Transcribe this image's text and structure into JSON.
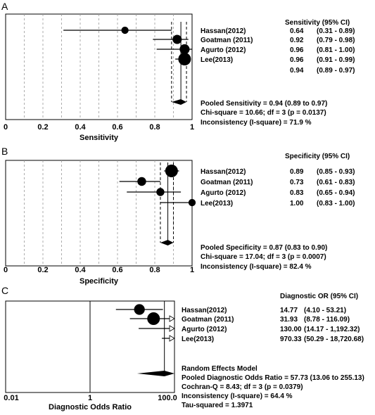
{
  "chart_data": [
    {
      "type": "forest",
      "panel_label": "A",
      "xlabel": "Sensitivity",
      "xlim": [
        0,
        1
      ],
      "xticks": [
        "0",
        "0.2",
        "0.4",
        "0.6",
        "0.8",
        "1"
      ],
      "header": "Sensitivity (95% CI)",
      "studies": [
        {
          "name": "Hassan(2012)",
          "est": 0.64,
          "lo": 0.31,
          "hi": 0.89,
          "value_text": "0.64",
          "ci_text": "(0.31 - 0.89)",
          "weight": 0.3
        },
        {
          "name": "Goatman (2011)",
          "est": 0.92,
          "lo": 0.79,
          "hi": 0.98,
          "value_text": "0.92",
          "ci_text": "(0.79 - 0.98)",
          "weight": 0.55
        },
        {
          "name": "Agurto (2012)",
          "est": 0.96,
          "lo": 0.81,
          "hi": 1.0,
          "value_text": "0.96",
          "ci_text": "(0.81 - 1.00)",
          "weight": 0.65
        },
        {
          "name": "Lee(2013)",
          "est": 0.96,
          "lo": 0.91,
          "hi": 0.99,
          "value_text": "0.96",
          "ci_text": "(0.91 - 0.99)",
          "weight": 1.0
        }
      ],
      "pooled": {
        "est": 0.94,
        "lo": 0.89,
        "hi": 0.97
      },
      "stats": [
        "Pooled Sensitivity = 0.94 (0.89 to 0.97)",
        "Chi-square = 10.66; df = 3 (p = 0.0137)",
        "Inconsistency (I-square) = 71.9 %"
      ]
    },
    {
      "type": "forest",
      "panel_label": "B",
      "xlabel": "Specificity",
      "xlim": [
        0,
        1
      ],
      "xticks": [
        "0",
        "0.2",
        "0.4",
        "0.6",
        "0.8",
        "1"
      ],
      "header": "Specificity (95% CI)",
      "studies": [
        {
          "name": "Hassan(2012)",
          "est": 0.89,
          "lo": 0.85,
          "hi": 0.93,
          "value_text": "0.89",
          "ci_text": "(0.85 - 0.93)",
          "weight": 1.0
        },
        {
          "name": "Goatman (2011)",
          "est": 0.73,
          "lo": 0.61,
          "hi": 0.83,
          "value_text": "0.73",
          "ci_text": "(0.61 - 0.83)",
          "weight": 0.5
        },
        {
          "name": "Agurto (2012)",
          "est": 0.83,
          "lo": 0.65,
          "hi": 0.94,
          "value_text": "0.83",
          "ci_text": "(0.65 - 0.94)",
          "weight": 0.4
        },
        {
          "name": "Lee(2013)",
          "est": 1.0,
          "lo": 0.83,
          "hi": 1.0,
          "value_text": "1.00",
          "ci_text": "(0.83 - 1.00)",
          "weight": 0.3
        }
      ],
      "pooled": {
        "est": 0.87,
        "lo": 0.83,
        "hi": 0.9
      },
      "stats": [
        "Pooled Specificity = 0.87 (0.83 to 0.90)",
        "Chi-square = 17.04; df = 3 (p = 0.0007)",
        "Inconsistency (I-square) = 82.4 %"
      ]
    },
    {
      "type": "forest",
      "panel_label": "C",
      "xlabel": "Diagnostic Odds Ratio",
      "scale": "log",
      "xlim": [
        0.01,
        100
      ],
      "xticks": [
        "0.01",
        "1",
        "100.0"
      ],
      "header": "Diagnostic OR (95% CI)",
      "studies": [
        {
          "name": "Hassan(2012)",
          "est": 14.77,
          "lo": 4.1,
          "hi": 53.21,
          "value_text": "14.77",
          "ci_text": "(4.10 - 53.21)",
          "weight": 0.75
        },
        {
          "name": "Goatman (2011)",
          "est": 31.93,
          "lo": 8.78,
          "hi": 116.09,
          "value_text": "31.93",
          "ci_text": "(8.78 - 116.09)",
          "weight": 1.0
        },
        {
          "name": "Agurto (2012)",
          "est": 130.0,
          "lo": 14.17,
          "hi": 1192.32,
          "value_text": "130.00",
          "ci_text": "(14.17 - 1,192.32)",
          "weight": 0
        },
        {
          "name": "Lee(2013)",
          "est": 970.33,
          "lo": 50.29,
          "hi": 18720.68,
          "value_text": "970.33",
          "ci_text": "(50.29 - 18,720.68)",
          "weight": 0
        }
      ],
      "pooled": {
        "est": 57.73,
        "lo": 13.06,
        "hi": 255.13
      },
      "stats": [
        "Random Effects Model",
        "Pooled Diagnostic Odds Ratio = 57.73 (13.06 to 255.13)",
        "Cochran-Q = 8.43; df = 3 (p = 0.0379)",
        "Inconsistency (I-square) = 64.4 %",
        "Tau-squared = 1.3971"
      ]
    }
  ]
}
